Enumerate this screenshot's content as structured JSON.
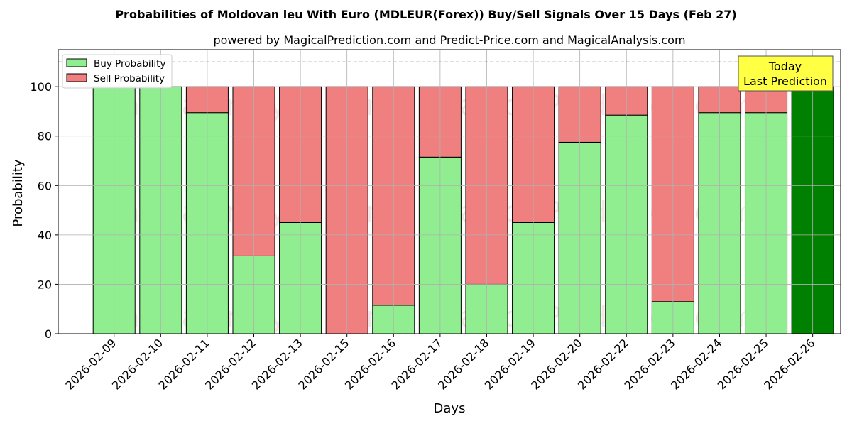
{
  "chart_data": {
    "type": "bar",
    "stacked": true,
    "title": "Probabilities of Moldovan leu With Euro (MDLEUR(Forex)) Buy/Sell Signals Over 15 Days (Feb 27)",
    "subtitle": "powered by MagicalPrediction.com and Predict-Price.com and MagicalAnalysis.com",
    "xlabel": "Days",
    "ylabel": "Probability",
    "ylim": [
      0,
      115
    ],
    "yticks": [
      0,
      20,
      40,
      60,
      80,
      100
    ],
    "reference_line": 110,
    "grid": true,
    "legend_position": "top-left",
    "categories": [
      "2026-02-09",
      "2026-02-10",
      "2026-02-11",
      "2026-02-12",
      "2026-02-13",
      "2026-02-15",
      "2026-02-16",
      "2026-02-17",
      "2026-02-18",
      "2026-02-19",
      "2026-02-20",
      "2026-02-22",
      "2026-02-23",
      "2026-02-24",
      "2026-02-25",
      "2026-02-26"
    ],
    "series": [
      {
        "name": "Buy Probability",
        "color": "#90ee90",
        "values": [
          100,
          100,
          89.5,
          31.5,
          45,
          0,
          11.5,
          71.5,
          20,
          45,
          77.5,
          88.5,
          13,
          89.5,
          89.5,
          100
        ]
      },
      {
        "name": "Sell Probability",
        "color": "#f08080",
        "values": [
          0,
          0,
          10.5,
          68.5,
          55,
          100,
          88.5,
          28.5,
          80,
          55,
          22.5,
          11.5,
          87,
          10.5,
          10.5,
          0
        ]
      }
    ],
    "highlight_index": 15,
    "highlight_color": "#008000",
    "annotation": {
      "lines": [
        "Today",
        "Last Prediction"
      ],
      "background": "#ffff44"
    },
    "watermarks": [
      "MagicalAnalysis.com",
      "MagicalPrediction.com"
    ]
  }
}
